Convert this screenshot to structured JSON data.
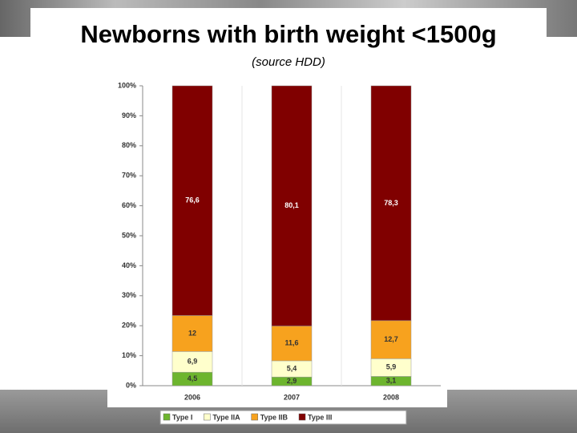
{
  "chart_data": {
    "type": "stacked_bar",
    "title": "Newborns with birth weight <1500g",
    "subtitle": "(source HDD)",
    "categories": [
      "2006",
      "2007",
      "2008"
    ],
    "series": [
      {
        "name": "Type I",
        "color": "#6db52e",
        "values": [
          4.5,
          2.9,
          3.1
        ],
        "value_labels": [
          "4,5",
          "2,9",
          "3,1"
        ]
      },
      {
        "name": "Type IIA",
        "color": "#ffffcc",
        "values": [
          6.9,
          5.4,
          5.9
        ],
        "value_labels": [
          "6,9",
          "5,4",
          "5,9"
        ]
      },
      {
        "name": "Type IIB",
        "color": "#f7a21e",
        "values": [
          12,
          11.6,
          12.7
        ],
        "value_labels": [
          "12",
          "11,6",
          "12,7"
        ]
      },
      {
        "name": "Type III",
        "color": "#800000",
        "values": [
          76.6,
          80.1,
          78.3
        ],
        "value_labels": [
          "76,6",
          "80,1",
          "78,3"
        ]
      }
    ],
    "ylim": [
      0,
      100
    ],
    "yticks": [
      {
        "value": 0,
        "label": "0%"
      },
      {
        "value": 10,
        "label": "10%"
      },
      {
        "value": 20,
        "label": "20%"
      },
      {
        "value": 30,
        "label": "30%"
      },
      {
        "value": 40,
        "label": "40%"
      },
      {
        "value": 50,
        "label": "50%"
      },
      {
        "value": 60,
        "label": "60%"
      },
      {
        "value": 70,
        "label": "70%"
      },
      {
        "value": 80,
        "label": "80%"
      },
      {
        "value": 90,
        "label": "90%"
      },
      {
        "value": 100,
        "label": "100%"
      }
    ],
    "grid": false,
    "legend": "bottom"
  }
}
